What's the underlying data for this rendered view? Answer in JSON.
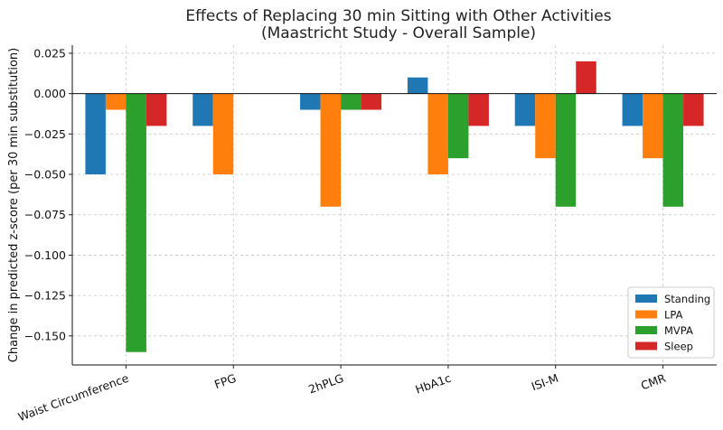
{
  "chart_data": {
    "type": "bar",
    "title": [
      "Effects of Replacing 30 min Sitting with Other Activities",
      "(Maastricht Study - Overall Sample)"
    ],
    "ylabel": "Change in predicted z-score (per 30 min substitution)",
    "xlabel": "",
    "categories": [
      "Waist Circumference",
      "FPG",
      "2hPLG",
      "HbA1c",
      "ISI-M",
      "CMR"
    ],
    "series": [
      {
        "name": "Standing",
        "color": "#1f77b4",
        "values": [
          -0.05,
          -0.02,
          -0.01,
          0.01,
          -0.02,
          -0.02
        ]
      },
      {
        "name": "LPA",
        "color": "#ff7f0e",
        "values": [
          -0.01,
          -0.05,
          -0.07,
          -0.05,
          -0.04,
          -0.04
        ]
      },
      {
        "name": "MVPA",
        "color": "#2ca02c",
        "values": [
          -0.16,
          null,
          -0.01,
          -0.04,
          -0.07,
          -0.07
        ]
      },
      {
        "name": "Sleep",
        "color": "#d62728",
        "values": [
          -0.02,
          null,
          -0.01,
          -0.02,
          0.02,
          -0.02
        ]
      }
    ],
    "ylim": [
      -0.168,
      0.03
    ],
    "yticks": [
      0.025,
      0.0,
      -0.025,
      -0.05,
      -0.075,
      -0.1,
      -0.125,
      -0.15
    ],
    "ytick_labels": [
      "0.025",
      "0.000",
      "−0.025",
      "−0.050",
      "−0.075",
      "−0.100",
      "−0.125",
      "−0.150"
    ],
    "grid": true,
    "legend_position": "bottom-right"
  }
}
